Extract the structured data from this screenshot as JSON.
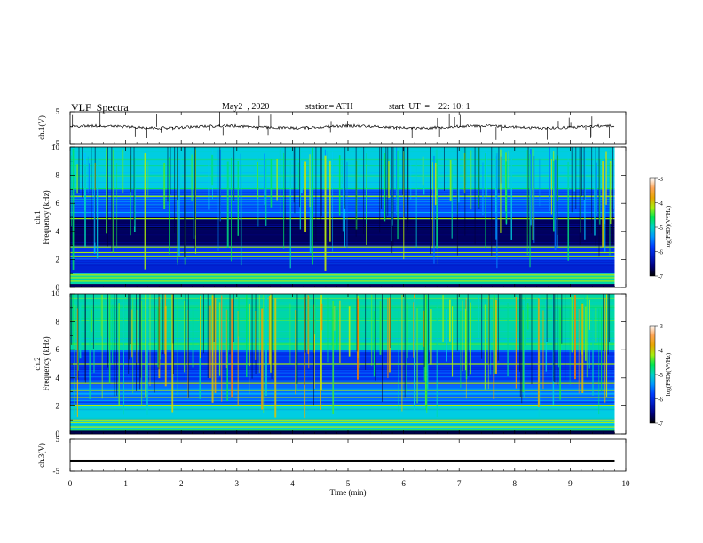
{
  "header": {
    "title": "VLF  Spectra",
    "date": "May2  , 2020",
    "station": "station= ATH",
    "start": "start  UT  =    22: 10: 1"
  },
  "chart_data": [
    {
      "type": "line",
      "name_label": "ch.1(V)",
      "ylim": [
        -5,
        5
      ],
      "yticks": [
        "5",
        "-5"
      ],
      "trace_level": 0.3,
      "style": "noisy waveform with sharp vertical spikes"
    },
    {
      "type": "heatmap",
      "ylabel_top": "ch.1",
      "ylabel": "Frequency (kHz)",
      "ylim": [
        0,
        10
      ],
      "yticks": [
        "0",
        "2",
        "4",
        "6",
        "8",
        "10"
      ],
      "colorbar": {
        "label": "log(PSD)(V²/Hz)",
        "range": [
          -7,
          -3
        ],
        "ticks": [
          "-3",
          "-4",
          "-5",
          "-6",
          "-7"
        ]
      },
      "bands": [
        {
          "from": 0.0,
          "to": 0.25,
          "level": -6.8
        },
        {
          "from": 0.25,
          "to": 1.0,
          "level": -4.9
        },
        {
          "from": 1.0,
          "to": 2.0,
          "level": -6.1
        },
        {
          "from": 2.0,
          "to": 3.0,
          "level": -5.9
        },
        {
          "from": 3.0,
          "to": 5.0,
          "level": -6.7
        },
        {
          "from": 5.0,
          "to": 7.0,
          "level": -5.7
        },
        {
          "from": 7.0,
          "to": 10.0,
          "level": -5.1
        }
      ],
      "lines_khz": [
        0.45,
        0.7,
        0.9,
        2.2,
        2.5,
        2.9,
        4.9,
        6.5
      ],
      "spike_level": -4.8,
      "spike_count": 140
    },
    {
      "type": "heatmap",
      "ylabel_top": "ch.2",
      "ylabel": "Frequency (kHz)",
      "ylim": [
        0,
        10
      ],
      "yticks": [
        "0",
        "2",
        "4",
        "6",
        "8",
        "10"
      ],
      "colorbar": {
        "label": "log(PSD)(V²/Hz)",
        "range": [
          -7,
          -3
        ],
        "ticks": [
          "-3",
          "-4",
          "-5",
          "-6",
          "-7"
        ]
      },
      "bands": [
        {
          "from": 0.0,
          "to": 0.25,
          "level": -6.8
        },
        {
          "from": 0.25,
          "to": 2.0,
          "level": -5.1
        },
        {
          "from": 2.0,
          "to": 3.5,
          "level": -5.6
        },
        {
          "from": 3.5,
          "to": 6.0,
          "level": -5.9
        },
        {
          "from": 6.0,
          "to": 10.0,
          "level": -4.9
        }
      ],
      "lines_khz": [
        0.5,
        0.8,
        1.0,
        2.0,
        2.6,
        3.1,
        3.6,
        5.0
      ],
      "spike_level": -4.3,
      "spike_count": 160
    },
    {
      "type": "line",
      "name_label": "ch.3(V)",
      "ylim": [
        -5,
        5
      ],
      "yticks": [
        "5",
        "-5"
      ],
      "trace_level": -1.8,
      "style": "thick flat line"
    }
  ],
  "xaxis": {
    "label": "Time (min)",
    "range": [
      0,
      10
    ],
    "ticks": [
      "0",
      "1",
      "2",
      "3",
      "4",
      "5",
      "6",
      "7",
      "8",
      "9",
      "10"
    ],
    "data_end": 9.8
  }
}
